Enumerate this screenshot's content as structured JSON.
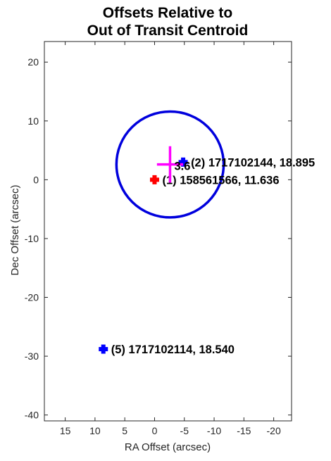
{
  "chart_data": {
    "type": "scatter",
    "title_lines": [
      "Offsets Relative to",
      "Out of Transit Centroid"
    ],
    "xlabel": "RA Offset (arcsec)",
    "ylabel": "Dec Offset (arcsec)",
    "xlim": [
      18.5,
      -23
    ],
    "ylim": [
      -41,
      23.5
    ],
    "x_reversed": true,
    "grid": false,
    "xticks": [
      15,
      10,
      5,
      0,
      -5,
      -10,
      -15,
      -20
    ],
    "xtick_labels": [
      "15",
      "10",
      "5",
      "0",
      "-5",
      "-10",
      "-15",
      "-20"
    ],
    "yticks": [
      20,
      10,
      0,
      -10,
      -20,
      -30,
      -40
    ],
    "ytick_labels": [
      "20",
      "10",
      "0",
      "-10",
      "-20",
      "-30",
      "-40"
    ],
    "stars": [
      {
        "label": "(1) 158561566, 11.636",
        "x": 0,
        "y": 0,
        "color": "#ff0000"
      },
      {
        "label": "(2) 1717102144, 18.895",
        "x": -4.8,
        "y": 3,
        "color": "#0000ff"
      },
      {
        "label": "(5) 1717102114, 18.540",
        "x": 8.6,
        "y": -28.8,
        "color": "#0000ff"
      }
    ],
    "centroid": {
      "x": -2.6,
      "y": 2.6,
      "x_err": 2.2,
      "y_err": 3.1,
      "color": "#ff00ff",
      "label": "3.6"
    },
    "circle": {
      "x": -2.6,
      "y": 2.6,
      "radius": 9,
      "color": "#0000dd"
    }
  }
}
